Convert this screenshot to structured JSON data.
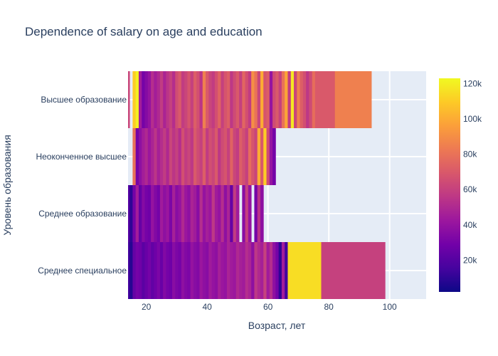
{
  "chart_data": {
    "type": "heatmap",
    "title": "Dependence of salary on age and education",
    "xlabel": "Возраст, лет",
    "ylabel": "Уровень образования",
    "xlim": [
      14,
      112
    ],
    "x_ticks": [
      20,
      40,
      60,
      80,
      100
    ],
    "categories": [
      "Высшее образование",
      "Неоконченное высшее",
      "Среднее образование",
      "Среднее специальное"
    ],
    "colorbar": {
      "min": 2000,
      "max": 123000,
      "ticks": [
        20000,
        40000,
        60000,
        80000,
        100000,
        120000
      ],
      "tick_labels": [
        "20k",
        "40k",
        "60k",
        "80k",
        "100k",
        "120k"
      ]
    },
    "colorscale": [
      "#0d0887",
      "#46039f",
      "#7201a8",
      "#9c179e",
      "#bd3786",
      "#d8576b",
      "#ed7953",
      "#fb9f3a",
      "#fdca26",
      "#f0f921"
    ],
    "series": [
      {
        "category": "Высшее образование",
        "x": [
          14,
          15,
          16,
          17,
          18,
          19,
          20,
          21,
          22,
          23,
          24,
          25,
          26,
          27,
          28,
          29,
          30,
          31,
          32,
          33,
          34,
          35,
          36,
          37,
          38,
          39,
          40,
          41,
          42,
          43,
          44,
          45,
          46,
          47,
          48,
          49,
          50,
          51,
          52,
          53,
          54,
          55,
          56,
          57,
          58,
          59,
          60,
          61,
          62,
          63,
          64,
          65,
          66,
          67,
          68,
          69,
          70,
          71,
          72,
          73,
          74,
          75,
          76,
          88
        ],
        "values": [
          62000,
          null,
          110000,
          120000,
          45000,
          30000,
          35000,
          40000,
          52000,
          45000,
          50000,
          58000,
          48000,
          55000,
          60000,
          52000,
          65000,
          70000,
          58000,
          62000,
          68000,
          60000,
          72000,
          66000,
          55000,
          85000,
          70000,
          62000,
          58000,
          66000,
          74000,
          60000,
          68000,
          72000,
          56000,
          64000,
          70000,
          60000,
          75000,
          66000,
          58000,
          90000,
          80000,
          62000,
          100000,
          68000,
          72000,
          40000,
          64000,
          70000,
          60000,
          80000,
          98000,
          58000,
          118000,
          62000,
          85000,
          72000,
          66000,
          56000,
          64000,
          78000,
          70000,
          85000
        ]
      },
      {
        "category": "Неоконченное высшее",
        "x": [
          16,
          17,
          18,
          19,
          20,
          21,
          22,
          23,
          24,
          25,
          26,
          27,
          28,
          29,
          30,
          31,
          32,
          33,
          34,
          35,
          36,
          37,
          38,
          39,
          40,
          41,
          42,
          43,
          44,
          45,
          46,
          47,
          48,
          49,
          50,
          51,
          52,
          53,
          54,
          55,
          56,
          57,
          58,
          59,
          60,
          61,
          62
        ],
        "values": [
          80000,
          30000,
          38000,
          45000,
          50000,
          42000,
          48000,
          55000,
          46000,
          52000,
          58000,
          50000,
          62000,
          55000,
          60000,
          52000,
          66000,
          58000,
          62000,
          56000,
          70000,
          64000,
          60000,
          72000,
          58000,
          66000,
          62000,
          70000,
          56000,
          64000,
          68000,
          60000,
          74000,
          62000,
          58000,
          72000,
          66000,
          60000,
          78000,
          68000,
          62000,
          100000,
          70000,
          110000,
          64000,
          40000,
          30000
        ]
      },
      {
        "category": "Среднее образование",
        "x": [
          14,
          15,
          16,
          17,
          18,
          19,
          20,
          21,
          22,
          23,
          24,
          25,
          26,
          27,
          28,
          29,
          30,
          31,
          32,
          33,
          34,
          35,
          36,
          37,
          38,
          39,
          40,
          41,
          42,
          43,
          44,
          45,
          46,
          47,
          48,
          49,
          50,
          51,
          52,
          53,
          54,
          55,
          56,
          57,
          58
        ],
        "values": [
          20000,
          10000,
          30000,
          45000,
          25000,
          35000,
          30000,
          28000,
          40000,
          34000,
          30000,
          44000,
          38000,
          42000,
          32000,
          46000,
          36000,
          40000,
          50000,
          42000,
          38000,
          48000,
          44000,
          36000,
          52000,
          40000,
          46000,
          42000,
          56000,
          44000,
          40000,
          52000,
          38000,
          48000,
          25000,
          58000,
          44000,
          null,
          36000,
          60000,
          40000,
          null,
          30000,
          54000,
          38000
        ]
      },
      {
        "category": "Среднее специальное",
        "x": [
          14,
          15,
          16,
          17,
          18,
          19,
          20,
          21,
          22,
          23,
          24,
          25,
          26,
          27,
          28,
          29,
          30,
          31,
          32,
          33,
          34,
          35,
          36,
          37,
          38,
          39,
          40,
          41,
          42,
          43,
          44,
          45,
          46,
          47,
          48,
          49,
          50,
          51,
          52,
          53,
          54,
          55,
          56,
          57,
          58,
          59,
          60,
          61,
          62,
          63,
          64,
          65,
          66,
          67,
          88
        ],
        "values": [
          15000,
          8000,
          25000,
          30000,
          28000,
          22000,
          26000,
          30000,
          24000,
          28000,
          32000,
          26000,
          34000,
          30000,
          28000,
          36000,
          32000,
          30000,
          38000,
          34000,
          32000,
          40000,
          36000,
          34000,
          42000,
          38000,
          36000,
          44000,
          40000,
          38000,
          46000,
          42000,
          40000,
          48000,
          44000,
          42000,
          50000,
          46000,
          44000,
          52000,
          48000,
          38000,
          56000,
          50000,
          46000,
          60000,
          44000,
          52000,
          38000,
          30000,
          10000,
          45000,
          15000,
          115000,
          60000
        ]
      }
    ]
  }
}
